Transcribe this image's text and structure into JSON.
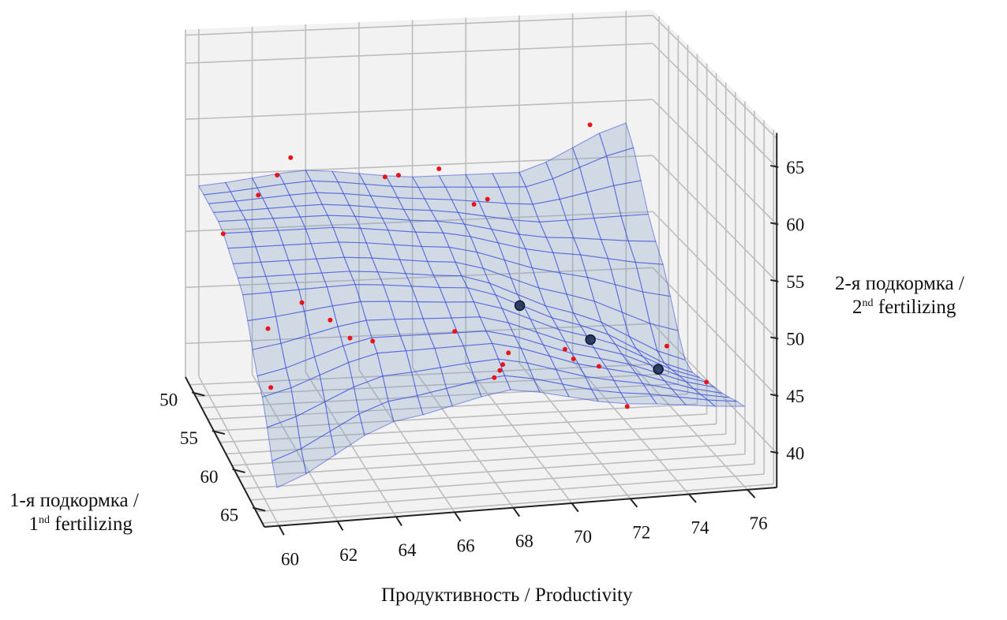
{
  "chart_data": {
    "type": "surface3d+scatter",
    "title": "",
    "axes": {
      "x": {
        "label": "Продуктивность / Productivity",
        "range": [
          59.5,
          77
        ],
        "ticks": [
          60,
          62,
          64,
          66,
          68,
          70,
          72,
          74,
          76
        ]
      },
      "y": {
        "label_line1": "1-я подкормка /",
        "label_line2_pre": "1",
        "label_line2_sup": "nd",
        "label_line2_post": " fertilizing",
        "range": [
          48,
          67.5
        ],
        "ticks": [
          50,
          55,
          60,
          65
        ]
      },
      "z": {
        "label_line1": "2-я подкормка /",
        "label_line2_pre": "2",
        "label_line2_sup": "nd",
        "label_line2_post": " fertilizing",
        "range": [
          37,
          68
        ],
        "ticks": [
          40,
          45,
          50,
          55,
          60,
          65
        ]
      }
    },
    "grid": true,
    "surface": {
      "x": [
        60,
        64,
        68,
        72,
        76
      ],
      "y": [
        48,
        53,
        58,
        63,
        67
      ],
      "z": [
        [
          54,
          55,
          54,
          54,
          58
        ],
        [
          54,
          54,
          53,
          51,
          50
        ],
        [
          52,
          52,
          51,
          47,
          42
        ],
        [
          46,
          49,
          49,
          46,
          43
        ],
        [
          40,
          45,
          47,
          45,
          44
        ]
      ],
      "fill_color": "#7f9cc4",
      "wire_color": "#3a4fd8"
    },
    "observations": {
      "color": "#e8141b",
      "points": [
        [
          63.1,
          50,
          57.5
        ],
        [
          62.6,
          50,
          56.0
        ],
        [
          61.9,
          50,
          54.3
        ],
        [
          66.6,
          50,
          55.4
        ],
        [
          67.1,
          50,
          55.5
        ],
        [
          68.6,
          50,
          55.9
        ],
        [
          69.9,
          50,
          52.6
        ],
        [
          70.4,
          50,
          53.0
        ],
        [
          74.2,
          50,
          59.2
        ],
        [
          60.6,
          50,
          51.0
        ],
        [
          61.9,
          60,
          51.3
        ],
        [
          60.7,
          60,
          49.2
        ],
        [
          62.9,
          60,
          49.6
        ],
        [
          63.6,
          60,
          47.9
        ],
        [
          64.4,
          60,
          47.5
        ],
        [
          60.8,
          60,
          44.0
        ],
        [
          67.3,
          60,
          47.9
        ],
        [
          69.2,
          60,
          45.7
        ],
        [
          69.0,
          60,
          44.7
        ],
        [
          68.9,
          60,
          44.2
        ],
        [
          68.7,
          60,
          43.6
        ],
        [
          71.2,
          60,
          45.7
        ],
        [
          72.4,
          60,
          44.0
        ],
        [
          74.8,
          60,
          45.4
        ],
        [
          76.2,
          60,
          42.0
        ],
        [
          73.4,
          60,
          40.3
        ],
        [
          71.5,
          60,
          44.8
        ]
      ]
    },
    "optimum_points": {
      "color": "#1f2f55",
      "points": [
        [
          69.6,
          60,
          49.8
        ],
        [
          72.1,
          60,
          46.4
        ],
        [
          74.5,
          60,
          43.4
        ]
      ]
    }
  }
}
